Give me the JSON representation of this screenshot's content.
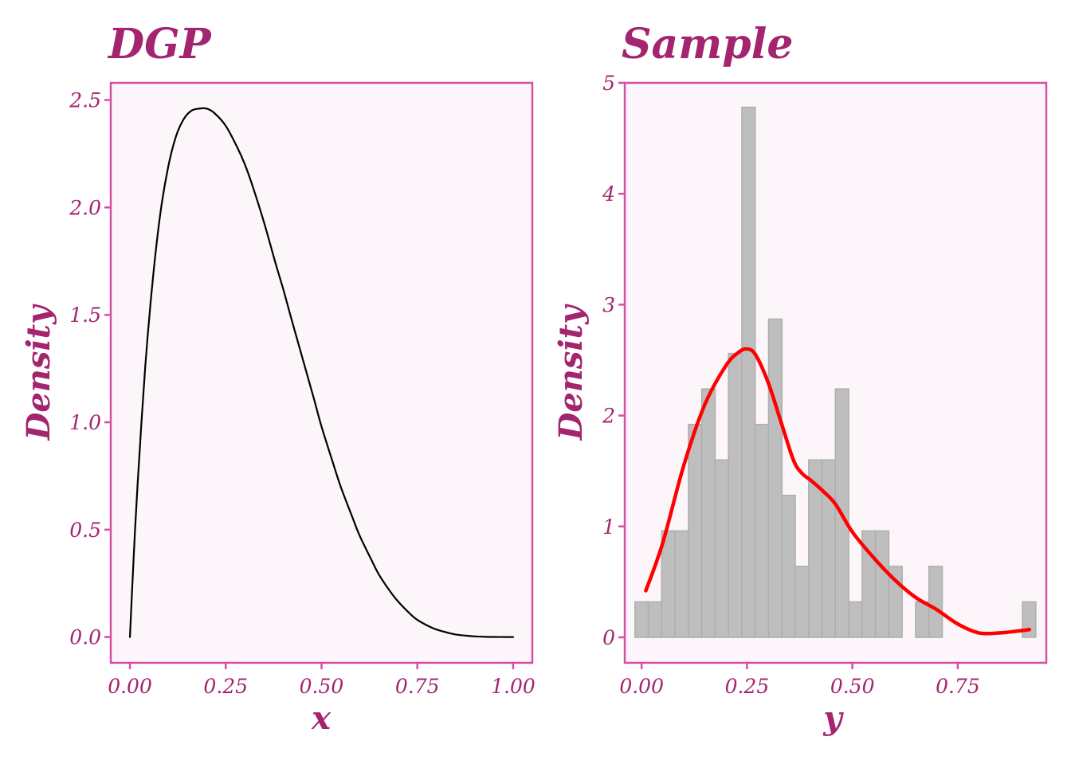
{
  "theme": {
    "text_color": "#A3246F",
    "panel_border": "#D54FA6",
    "panel_fill": "#FCF5FA",
    "tick_color": "#D54FA6",
    "bar_fill": "#BEBEBE",
    "bar_stroke": "#AEAEAE",
    "dgp_line_color": "#000000",
    "kde_line_color": "#FF0000"
  },
  "chart_data": [
    {
      "type": "line",
      "title": "DGP",
      "xlabel": "x",
      "ylabel": "Density",
      "xlim": [
        -0.05,
        1.05
      ],
      "ylim": [
        -0.12,
        2.58
      ],
      "x_ticks": [
        0,
        0.25,
        0.5,
        0.75,
        1.0
      ],
      "x_tick_labels": [
        "0.00",
        "0.25",
        "0.50",
        "0.75",
        "1.00"
      ],
      "y_ticks": [
        0,
        0.5,
        1.0,
        1.5,
        2.0,
        2.5
      ],
      "y_tick_labels": [
        "0.0",
        "0.5",
        "1.0",
        "1.5",
        "2.0",
        "2.5"
      ],
      "grid": false,
      "series": [
        {
          "x": [
            0.0,
            0.01,
            0.02,
            0.04,
            0.06,
            0.08,
            0.1,
            0.12,
            0.14,
            0.16,
            0.18,
            0.2,
            0.22,
            0.25,
            0.28,
            0.3,
            0.32,
            0.35,
            0.38,
            0.4,
            0.42,
            0.45,
            0.48,
            0.5,
            0.53,
            0.55,
            0.58,
            0.6,
            0.63,
            0.65,
            0.68,
            0.7,
            0.73,
            0.75,
            0.78,
            0.8,
            0.83,
            0.85,
            0.88,
            0.9,
            0.93,
            0.95,
            0.98,
            1.0
          ],
          "y": [
            0.0,
            0.38,
            0.71,
            1.26,
            1.67,
            1.98,
            2.19,
            2.33,
            2.41,
            2.45,
            2.46,
            2.46,
            2.44,
            2.38,
            2.28,
            2.2,
            2.1,
            1.93,
            1.74,
            1.62,
            1.49,
            1.3,
            1.11,
            0.98,
            0.81,
            0.7,
            0.56,
            0.47,
            0.36,
            0.29,
            0.21,
            0.165,
            0.11,
            0.08,
            0.05,
            0.035,
            0.02,
            0.012,
            0.006,
            0.003,
            0.001,
            0.0005,
            0.0,
            0.0
          ]
        }
      ]
    },
    {
      "type": "bar",
      "title": "Sample",
      "xlabel": "y",
      "ylabel": "Density",
      "xlim": [
        -0.04,
        0.96
      ],
      "ylim": [
        -0.23,
        5.0
      ],
      "x_ticks": [
        0,
        0.25,
        0.5,
        0.75
      ],
      "x_tick_labels": [
        "0.00",
        "0.25",
        "0.50",
        "0.75"
      ],
      "y_ticks": [
        0,
        1,
        2,
        3,
        4,
        5
      ],
      "y_tick_labels": [
        "0",
        "1",
        "2",
        "3",
        "4",
        "5"
      ],
      "grid": false,
      "bin_width": 0.0317,
      "bin_centers": [
        0.0,
        0.0317,
        0.0634,
        0.0951,
        0.1268,
        0.1585,
        0.1902,
        0.2219,
        0.2536,
        0.2853,
        0.317,
        0.3487,
        0.3804,
        0.4121,
        0.4438,
        0.4755,
        0.5072,
        0.5389,
        0.5706,
        0.6023,
        0.634,
        0.6657,
        0.6974,
        0.7291,
        0.7608,
        0.7925,
        0.8242,
        0.8559,
        0.8876,
        0.9193
      ],
      "bin_density": [
        0.32,
        0.32,
        0.96,
        0.96,
        1.92,
        2.24,
        1.6,
        2.56,
        4.78,
        1.92,
        2.87,
        1.28,
        0.64,
        1.6,
        1.6,
        2.24,
        0.32,
        0.96,
        0.96,
        0.64,
        0.0,
        0.32,
        0.64,
        0.0,
        0.0,
        0.0,
        0.0,
        0.0,
        0.0,
        0.32
      ],
      "series": [
        {
          "name": "",
          "x": [
            0.01,
            0.05,
            0.1,
            0.15,
            0.2,
            0.23,
            0.25,
            0.27,
            0.3,
            0.33,
            0.36,
            0.38,
            0.4,
            0.43,
            0.46,
            0.5,
            0.55,
            0.6,
            0.65,
            0.7,
            0.75,
            0.8,
            0.85,
            0.9,
            0.92
          ],
          "y": [
            0.42,
            0.85,
            1.55,
            2.1,
            2.45,
            2.57,
            2.6,
            2.55,
            2.3,
            1.95,
            1.6,
            1.48,
            1.42,
            1.32,
            1.2,
            0.95,
            0.72,
            0.52,
            0.36,
            0.25,
            0.12,
            0.04,
            0.04,
            0.06,
            0.07
          ]
        }
      ]
    }
  ]
}
